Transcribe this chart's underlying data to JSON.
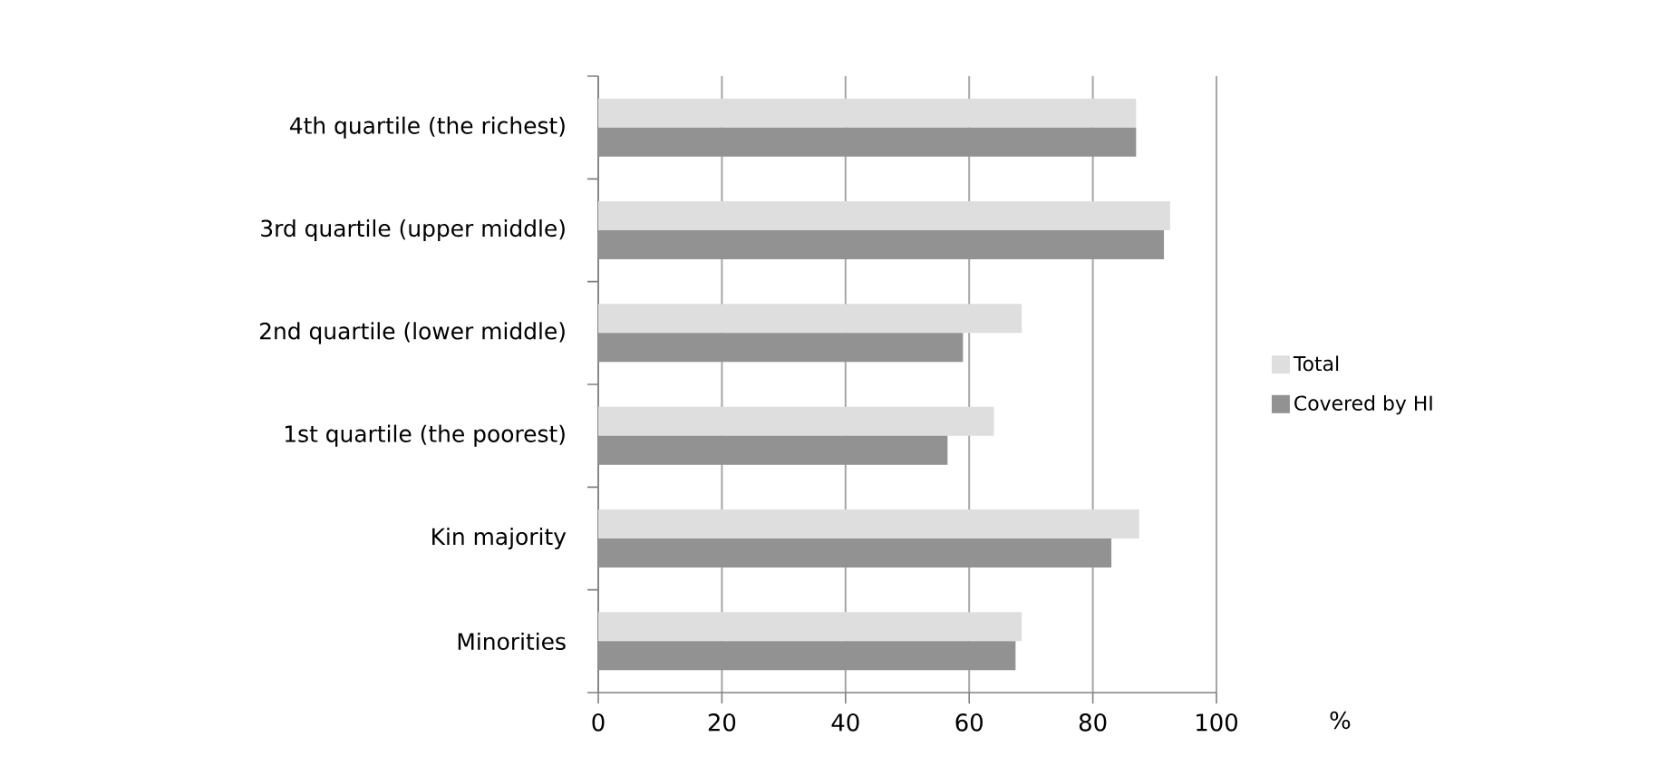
{
  "chart_data": {
    "type": "bar",
    "orientation": "horizontal",
    "xlabel": "%",
    "categories": [
      "4th quartile  (the richest)",
      "3rd quartile (upper middle)",
      "2nd quartile (lower middle)",
      "1st quartile  (the poorest)",
      "Kin majority",
      "Minorities"
    ],
    "series": [
      {
        "name": "Total",
        "color": "#dedede",
        "values": [
          87,
          92.5,
          68.5,
          64,
          87.5,
          68.5
        ]
      },
      {
        "name": "Covered by HI",
        "color": "#929292",
        "values": [
          87,
          91.5,
          59,
          56.5,
          83,
          67.5
        ]
      }
    ],
    "xlim": [
      0,
      100
    ],
    "xticks": [
      0,
      20,
      40,
      60,
      80,
      100
    ],
    "grid": "x",
    "legend": "right"
  }
}
